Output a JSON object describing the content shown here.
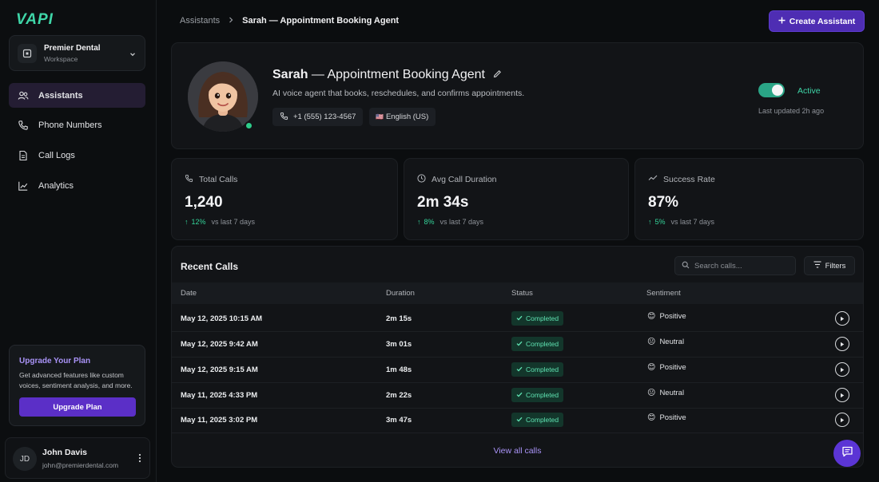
{
  "brand": {
    "logo": "VAPI"
  },
  "workspace": {
    "name": "Premier Dental",
    "subtitle": "Workspace"
  },
  "nav": {
    "items": [
      {
        "label": "Assistants",
        "icon": "users-icon",
        "active": true
      },
      {
        "label": "Phone Numbers",
        "icon": "phone-icon"
      },
      {
        "label": "Call Logs",
        "icon": "document-icon"
      },
      {
        "label": "Analytics",
        "icon": "chart-line-icon"
      }
    ]
  },
  "upgrade": {
    "title": "Upgrade Your Plan",
    "text": "Get advanced features like custom voices, sentiment analysis, and more.",
    "button": "Upgrade Plan"
  },
  "user": {
    "initials": "JD",
    "name": "John Davis",
    "email": "john@premierdental.com"
  },
  "breadcrumb": {
    "parent": "Assistants",
    "current": "Sarah — Appointment Booking Agent"
  },
  "header": {
    "create_label": "Create Assistant"
  },
  "assistant": {
    "name": "Sarah",
    "title_rest": "— Appointment Booking Agent",
    "description": "AI voice agent that books, reschedules, and confirms appointments.",
    "phone": "+1 (555) 123-4567",
    "language": "English (US)",
    "language_prefix": "🇺🇸",
    "status": "Active",
    "updated": "Last updated 2h ago",
    "accent": "#3fd6a8"
  },
  "stats": [
    {
      "label": "Total Calls",
      "value": "1,240",
      "delta": "12%",
      "delta_suffix": "vs last 7 days",
      "icon": "phone-icon"
    },
    {
      "label": "Avg Call Duration",
      "value": "2m 34s",
      "delta": "8%",
      "delta_suffix": "vs last 7 days",
      "icon": "clock-icon"
    },
    {
      "label": "Success Rate",
      "value": "87%",
      "delta": "5%",
      "delta_suffix": "vs last 7 days",
      "icon": "trend-icon"
    }
  ],
  "calls": {
    "title": "Recent Calls",
    "search_placeholder": "Search calls...",
    "filters_label": "Filters",
    "columns": {
      "date": "Date",
      "duration": "Duration",
      "status": "Status",
      "sentiment": "Sentiment"
    },
    "rows": [
      {
        "date": "May 12, 2025 10:15 AM",
        "duration": "2m 15s",
        "status": "Completed",
        "sentiment": "Positive",
        "emoji": "😊"
      },
      {
        "date": "May 12, 2025 9:42 AM",
        "duration": "3m 01s",
        "status": "Completed",
        "sentiment": "Neutral",
        "emoji": "😐"
      },
      {
        "date": "May 12, 2025 9:15 AM",
        "duration": "1m 48s",
        "status": "Completed",
        "sentiment": "Positive",
        "emoji": "😊"
      },
      {
        "date": "May 11, 2025 4:33 PM",
        "duration": "2m 22s",
        "status": "Completed",
        "sentiment": "Neutral",
        "emoji": "😐"
      },
      {
        "date": "May 11, 2025 3:02 PM",
        "duration": "3m 47s",
        "status": "Completed",
        "sentiment": "Positive",
        "emoji": "😊"
      }
    ],
    "view_all": "View all calls"
  }
}
